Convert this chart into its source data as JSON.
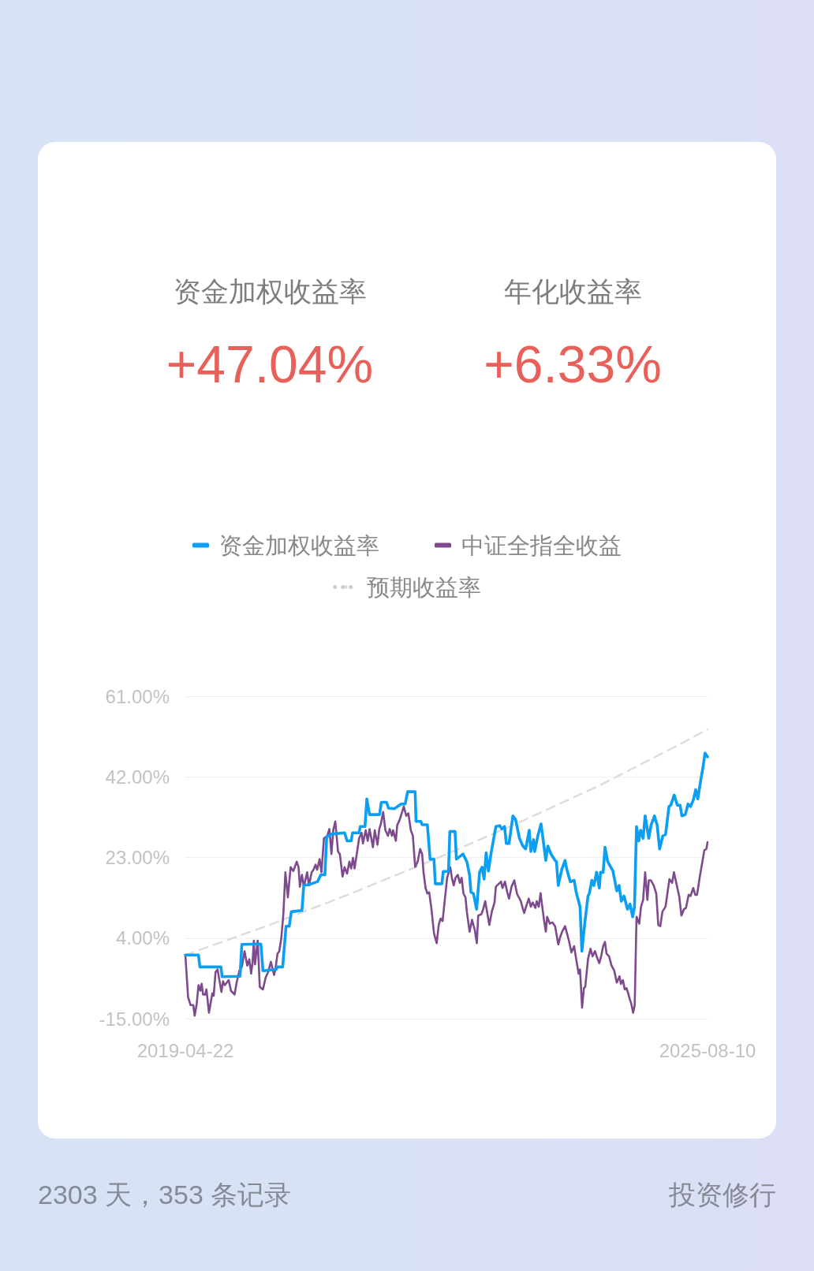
{
  "chart_data": {
    "type": "line",
    "legend": "top",
    "grid": "y",
    "marker": "none",
    "line_style": "solid",
    "xlim": [
      "2019-04-22",
      "2025-08-10"
    ],
    "xticks": [
      "2019-04-22",
      "2025-08-10"
    ],
    "ylim": [
      -15,
      61
    ],
    "yticks": [
      {
        "value": -15,
        "label": "-15.00%"
      },
      {
        "value": 4,
        "label": "4.00%"
      },
      {
        "value": 23,
        "label": "23.00%"
      },
      {
        "value": 42,
        "label": "42.00%"
      },
      {
        "value": 61,
        "label": "61.00%"
      }
    ],
    "annotations": [
      "资金加权收益率",
      "+47.04%",
      "年化收益率",
      "+6.33%",
      "2303 天，353 条记录",
      "投资修行"
    ],
    "series": [
      {
        "name": "资金加权收益率",
        "color": "#0a9ff2",
        "x": [
          "2019-04-22",
          "2019-06-19",
          "2019-06-25",
          "2019-09-26",
          "2019-10-01",
          "2019-12-19",
          "2019-12-27",
          "2020-03-20",
          "2020-03-29",
          "2020-05-26",
          "2020-06-01",
          "2020-06-24",
          "2020-07-09",
          "2020-07-23",
          "2020-08-01",
          "2020-09-17",
          "2020-09-25",
          "2020-10-24",
          "2020-11-25",
          "2020-12-09",
          "2020-12-27",
          "2021-01-04",
          "2021-01-25",
          "2021-03-24",
          "2021-04-04",
          "2021-04-22",
          "2021-04-28",
          "2021-05-27",
          "2021-06-01",
          "2021-06-22",
          "2021-06-30",
          "2021-07-12",
          "2021-08-25",
          "2021-09-02",
          "2021-09-25",
          "2021-10-04",
          "2021-10-30",
          "2021-11-28",
          "2021-12-16",
          "2021-12-27",
          "2022-01-29",
          "2022-02-02",
          "2022-02-23",
          "2022-03-01",
          "2022-03-24",
          "2022-04-05",
          "2022-04-22",
          "2022-04-28",
          "2022-05-27",
          "2022-06-02",
          "2022-06-25",
          "2022-07-01",
          "2022-07-24",
          "2022-07-30",
          "2022-08-28",
          "2022-09-14",
          "2022-09-26",
          "2022-10-02",
          "2022-10-13",
          "2022-10-27",
          "2022-11-09",
          "2022-11-20",
          "2022-11-29",
          "2022-12-08",
          "2022-12-18",
          "2022-12-31",
          "2023-01-20",
          "2023-02-06",
          "2023-02-15",
          "2023-02-27",
          "2023-03-07",
          "2023-03-19",
          "2023-04-05",
          "2023-04-17",
          "2023-05-04",
          "2023-05-19",
          "2023-05-31",
          "2023-06-16",
          "2023-06-23",
          "2023-07-05",
          "2023-07-10",
          "2023-07-24",
          "2023-08-07",
          "2023-08-17",
          "2023-08-28",
          "2023-09-06",
          "2023-09-20",
          "2023-10-08",
          "2023-10-14",
          "2023-10-22",
          "2023-11-06",
          "2023-11-21",
          "2023-11-29",
          "2023-12-14",
          "2023-12-31",
          "2024-01-09",
          "2024-01-26",
          "2024-02-03",
          "2024-02-15",
          "2024-03-01",
          "2024-03-07",
          "2024-03-18",
          "2024-03-27",
          "2024-04-08",
          "2024-04-20",
          "2024-04-25",
          "2024-05-07",
          "2024-05-15",
          "2024-05-27",
          "2024-06-19",
          "2024-07-06",
          "2024-07-16",
          "2024-07-26",
          "2024-08-07",
          "2024-08-22",
          "2024-09-02",
          "2024-09-14",
          "2024-09-22",
          "2024-10-01",
          "2024-10-11",
          "2024-10-19",
          "2024-10-30",
          "2024-11-08",
          "2024-11-24",
          "2024-12-04",
          "2024-12-19",
          "2024-12-31",
          "2025-01-11",
          "2025-01-25",
          "2025-02-06",
          "2025-02-21",
          "2025-03-01",
          "2025-03-16",
          "2025-03-30",
          "2025-04-11",
          "2025-04-19",
          "2025-05-04",
          "2025-05-16",
          "2025-05-27",
          "2025-06-08",
          "2025-06-19",
          "2025-06-28",
          "2025-07-13",
          "2025-07-21",
          "2025-07-30",
          "2025-08-10"
        ],
        "values": [
          0.0,
          0.0,
          -2.8,
          -2.8,
          -5.1,
          -5.0,
          2.5,
          2.6,
          -3.7,
          -3.4,
          -2.8,
          -2.8,
          6.8,
          6.8,
          10.2,
          10.5,
          16.4,
          16.7,
          17.3,
          18.9,
          18.9,
          27.8,
          28.5,
          28.8,
          26.9,
          26.9,
          28.8,
          28.8,
          30.3,
          30.3,
          36.8,
          33.1,
          33.1,
          36.0,
          36.0,
          34.6,
          34.5,
          35.6,
          35.6,
          38.5,
          38.5,
          31.5,
          31.5,
          30.7,
          30.7,
          22.6,
          22.6,
          16.8,
          16.8,
          19.7,
          19.7,
          29.1,
          29.1,
          22.6,
          23.8,
          22.0,
          18.9,
          14.8,
          14.5,
          10.8,
          19.5,
          20.7,
          17.9,
          24.1,
          19.8,
          24.4,
          30.3,
          30.5,
          29.7,
          30.3,
          26.3,
          26.3,
          32.8,
          31.9,
          27.5,
          25.7,
          25.0,
          29.4,
          24.4,
          27.2,
          24.4,
          28.1,
          30.9,
          26.9,
          22.3,
          25.7,
          23.8,
          22.3,
          22.0,
          16.4,
          20.1,
          22.3,
          20.1,
          17.3,
          17.6,
          14.8,
          11.4,
          0.9,
          7.1,
          13.9,
          14.5,
          17.6,
          16.4,
          19.5,
          15.8,
          19.5,
          19.5,
          25.4,
          22.0,
          19.8,
          15.1,
          16.4,
          12.7,
          13.9,
          10.8,
          12.0,
          9.0,
          11.4,
          30.3,
          26.9,
          29.4,
          27.5,
          32.8,
          27.5,
          30.6,
          32.8,
          30.6,
          25.0,
          28.1,
          28.4,
          35.0,
          35.3,
          37.7,
          35.3,
          35.3,
          32.8,
          33.1,
          35.6,
          35.0,
          36.5,
          39.0,
          36.8,
          41.8,
          44.2,
          47.6,
          46.7
        ]
      },
      {
        "name": "中证全指全收益",
        "color": "#7d4a8d",
        "x": [
          "2019-04-22",
          "2019-05-04",
          "2019-05-15",
          "2019-05-27",
          "2019-06-02",
          "2019-06-11",
          "2019-06-19",
          "2019-06-27",
          "2019-07-03",
          "2019-07-09",
          "2019-07-18",
          "2019-07-24",
          "2019-08-04",
          "2019-08-19",
          "2019-08-25",
          "2019-09-02",
          "2019-09-11",
          "2019-09-28",
          "2019-10-05",
          "2019-10-13",
          "2019-10-30",
          "2019-11-09",
          "2019-11-25",
          "2019-12-04",
          "2019-12-16",
          "2019-12-27",
          "2020-01-08",
          "2020-01-20",
          "2020-01-29",
          "2020-02-06",
          "2020-02-12",
          "2020-02-18",
          "2020-02-23",
          "2020-03-06",
          "2020-03-15",
          "2020-03-29",
          "2020-04-10",
          "2020-04-21",
          "2020-05-03",
          "2020-05-17",
          "2020-05-24",
          "2020-06-01",
          "2020-06-09",
          "2020-06-18",
          "2020-06-27",
          "2020-07-06",
          "2020-07-17",
          "2020-07-29",
          "2020-08-10",
          "2020-08-25",
          "2020-09-02",
          "2020-09-08",
          "2020-09-17",
          "2020-09-25",
          "2020-10-10",
          "2020-10-18",
          "2020-10-30",
          "2020-11-07",
          "2020-11-16",
          "2020-11-23",
          "2020-12-04",
          "2020-12-12",
          "2020-12-23",
          "2021-01-07",
          "2021-01-16",
          "2021-01-25",
          "2021-02-02",
          "2021-02-11",
          "2021-02-23",
          "2021-03-03",
          "2021-03-15",
          "2021-03-24",
          "2021-04-04",
          "2021-04-14",
          "2021-04-22",
          "2021-04-30",
          "2021-05-07",
          "2021-05-15",
          "2021-05-27",
          "2021-06-07",
          "2021-06-13",
          "2021-06-25",
          "2021-07-04",
          "2021-07-12",
          "2021-07-27",
          "2021-08-04",
          "2021-08-16",
          "2021-08-24",
          "2021-08-31",
          "2021-09-10",
          "2021-09-20",
          "2021-10-01",
          "2021-10-09",
          "2021-10-19",
          "2021-10-24",
          "2021-11-05",
          "2021-11-11",
          "2021-11-22",
          "2021-12-10",
          "2021-12-21",
          "2021-12-30",
          "2022-01-10",
          "2022-01-19",
          "2022-01-29",
          "2022-02-09",
          "2022-02-20",
          "2022-03-01",
          "2022-03-07",
          "2022-03-16",
          "2022-03-24",
          "2022-04-01",
          "2022-04-11",
          "2022-04-22",
          "2022-05-04",
          "2022-05-13",
          "2022-05-21",
          "2022-05-30",
          "2022-06-19",
          "2022-07-03",
          "2022-07-10",
          "2022-07-18",
          "2022-07-26",
          "2022-08-05",
          "2022-08-14",
          "2022-08-22",
          "2022-08-30",
          "2022-09-08",
          "2022-09-14",
          "2022-09-26",
          "2022-10-07",
          "2022-10-19",
          "2022-10-28",
          "2022-11-03",
          "2022-11-17",
          "2022-11-25",
          "2022-12-04",
          "2022-12-13",
          "2022-12-22",
          "2023-01-02",
          "2023-01-14",
          "2023-01-20",
          "2023-01-31",
          "2023-02-12",
          "2023-02-18",
          "2023-03-01",
          "2023-03-11",
          "2023-03-19",
          "2023-03-30",
          "2023-04-11",
          "2023-04-23",
          "2023-04-28",
          "2023-05-10",
          "2023-05-18",
          "2023-05-25",
          "2023-06-02",
          "2023-06-14",
          "2023-06-23",
          "2023-07-01",
          "2023-07-13",
          "2023-07-19",
          "2023-07-28",
          "2023-08-05",
          "2023-08-11",
          "2023-08-20",
          "2023-08-28",
          "2023-09-03",
          "2023-09-15",
          "2023-09-26",
          "2023-10-08",
          "2023-10-22",
          "2023-10-31",
          "2023-11-08",
          "2023-11-21",
          "2023-11-29",
          "2023-12-08",
          "2023-12-19",
          "2023-12-31",
          "2024-01-09",
          "2024-01-20",
          "2024-01-26",
          "2024-02-04",
          "2024-02-12",
          "2024-02-18",
          "2024-03-01",
          "2024-03-12",
          "2024-03-21",
          "2024-04-01",
          "2024-04-10",
          "2024-04-20",
          "2024-04-28",
          "2024-05-07",
          "2024-05-15",
          "2024-05-22",
          "2024-06-02",
          "2024-06-13",
          "2024-06-25",
          "2024-07-06",
          "2024-07-18",
          "2024-07-24",
          "2024-08-02",
          "2024-08-10",
          "2024-08-18",
          "2024-08-25",
          "2024-09-02",
          "2024-09-08",
          "2024-09-16",
          "2024-09-23",
          "2024-10-01",
          "2024-10-13",
          "2024-10-21",
          "2024-10-30",
          "2024-11-08",
          "2024-11-18",
          "2024-11-24",
          "2024-12-04",
          "2024-12-16",
          "2024-12-27",
          "2025-01-05",
          "2025-01-14",
          "2025-01-23",
          "2025-02-06",
          "2025-02-14",
          "2025-02-23",
          "2025-03-07",
          "2025-03-15",
          "2025-03-30",
          "2025-04-07",
          "2025-04-17",
          "2025-04-28",
          "2025-05-07",
          "2025-05-19",
          "2025-05-27",
          "2025-06-08",
          "2025-06-17",
          "2025-06-25",
          "2025-07-07",
          "2025-07-18",
          "2025-07-27",
          "2025-08-05",
          "2025-08-10"
        ],
        "values": [
          0.0,
          -9.9,
          -11.8,
          -11.8,
          -14.3,
          -11.5,
          -7.1,
          -8.4,
          -6.8,
          -9.3,
          -9.3,
          -8.1,
          -13.6,
          -9.0,
          -9.6,
          -4.0,
          -3.4,
          -8.7,
          -6.2,
          -7.1,
          -5.9,
          -8.4,
          -9.3,
          -6.5,
          -3.7,
          -2.8,
          0.9,
          -2.5,
          -1.0,
          -4.4,
          -1.9,
          3.4,
          -2.2,
          3.4,
          -7.5,
          -8.1,
          -5.3,
          -4.0,
          -1.6,
          -4.7,
          -3.1,
          0.3,
          0.9,
          4.0,
          9.6,
          19.5,
          13.6,
          20.7,
          19.8,
          22.0,
          20.7,
          16.1,
          18.9,
          16.1,
          19.5,
          16.4,
          19.5,
          20.1,
          21.3,
          20.1,
          22.6,
          19.5,
          27.5,
          28.1,
          29.7,
          23.8,
          29.4,
          31.5,
          24.4,
          23.8,
          18.5,
          20.7,
          19.2,
          22.0,
          20.4,
          22.9,
          20.4,
          23.2,
          27.5,
          28.8,
          26.3,
          29.4,
          26.9,
          29.7,
          25.4,
          29.4,
          26.0,
          29.7,
          30.9,
          33.7,
          29.4,
          28.1,
          29.7,
          28.1,
          29.4,
          26.9,
          30.6,
          31.9,
          35.0,
          32.8,
          33.4,
          29.4,
          28.1,
          20.8,
          22.0,
          25.0,
          23.8,
          19.5,
          15.8,
          14.5,
          14.8,
          10.8,
          5.2,
          2.8,
          7.1,
          8.6,
          8.0,
          18.2,
          20.7,
          18.2,
          16.4,
          18.2,
          18.9,
          17.0,
          18.2,
          14.5,
          13.6,
          10.2,
          5.5,
          8.3,
          5.9,
          2.8,
          9.3,
          9.6,
          10.8,
          12.7,
          9.9,
          7.1,
          10.2,
          12.4,
          16.1,
          16.7,
          17.3,
          15.8,
          17.3,
          14.8,
          13.3,
          16.1,
          17.6,
          14.5,
          13.9,
          12.7,
          11.1,
          9.9,
          11.4,
          13.3,
          11.4,
          12.4,
          11.1,
          12.7,
          11.4,
          14.6,
          12.0,
          8.3,
          5.5,
          9.0,
          7.4,
          7.7,
          6.8,
          2.5,
          4.3,
          5.5,
          6.8,
          5.2,
          3.4,
          0.6,
          2.1,
          -1.0,
          -4.4,
          -3.4,
          -12.4,
          -7.8,
          -7.5,
          -1.0,
          1.5,
          -0.3,
          0.9,
          -0.6,
          -1.9,
          -0.3,
          2.1,
          3.1,
          0.3,
          -0.3,
          -2.5,
          -3.7,
          -6.5,
          -5.0,
          -6.8,
          -5.9,
          -8.1,
          -7.8,
          -9.0,
          -10.5,
          -11.5,
          -13.6,
          -11.8,
          9.0,
          7.4,
          11.4,
          13.0,
          19.5,
          13.0,
          17.6,
          17.6,
          16.4,
          14.5,
          7.1,
          6.8,
          10.2,
          11.4,
          14.5,
          17.9,
          17.0,
          19.5,
          15.8,
          13.9,
          9.3,
          10.8,
          11.1,
          14.2,
          13.9,
          15.8,
          14.2,
          14.2,
          18.5,
          21.9,
          24.7,
          25.0,
          26.6
        ]
      },
      {
        "name": "预期收益率",
        "color": "#dcdcdc",
        "line_style": "dashed",
        "x": [
          "2019-04-22",
          "2020-04-22",
          "2021-04-22",
          "2022-04-22",
          "2023-04-22",
          "2024-04-22",
          "2025-04-22",
          "2025-08-10"
        ],
        "values": [
          0.0,
          7.0,
          14.5,
          22.5,
          31.0,
          40.0,
          50.0,
          53.2
        ]
      }
    ]
  }
}
